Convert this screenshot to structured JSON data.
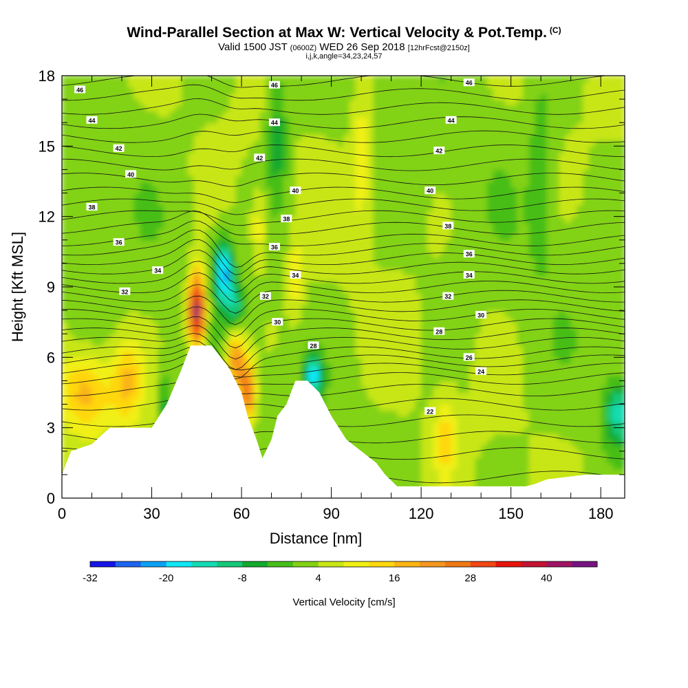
{
  "title": {
    "main": "Wind-Parallel Section at Max W: Vertical Velocity & Pot.Temp.",
    "copyright": "(C)",
    "valid_prefix": "Valid 1500 JST",
    "valid_utc": "(0600Z)",
    "valid_date": "WED 26 Sep 2018",
    "forecast": "[12hrFcst@2150z]",
    "indices": "i,j,k,angle=34,23,24,57"
  },
  "chart_data": {
    "type": "heatmap",
    "title": "Wind-Parallel Section at Max W: Vertical Velocity & Pot.Temp.",
    "xlabel": "Distance [nm]",
    "ylabel": "Height [Kft MSL]",
    "xlim": [
      0,
      188
    ],
    "ylim": [
      0,
      18
    ],
    "x_ticks": [
      0,
      30,
      60,
      90,
      120,
      150,
      180
    ],
    "y_ticks": [
      0,
      3,
      6,
      9,
      12,
      15,
      18
    ],
    "colorbar": {
      "label": "Vertical Velocity [cm/s]",
      "tick_labels": [
        "-32",
        "-20",
        "-8",
        "4",
        "16",
        "28",
        "40"
      ],
      "levels": [
        -32,
        -28,
        -24,
        -20,
        -16,
        -12,
        -8,
        -4,
        0,
        4,
        8,
        12,
        16,
        20,
        24,
        28,
        32,
        36,
        40,
        44,
        48
      ],
      "colors": [
        "#1414e6",
        "#1e64f0",
        "#0aa0f5",
        "#10e6f5",
        "#14dcb4",
        "#14c878",
        "#14aa2e",
        "#46be18",
        "#82d214",
        "#c8e614",
        "#f0f014",
        "#ffd70f",
        "#fab414",
        "#f5961e",
        "#f07814",
        "#f04614",
        "#e6140a",
        "#c31432",
        "#a01464",
        "#781482"
      ]
    },
    "terrain_kft": [
      [
        0,
        1.0
      ],
      [
        3,
        2.0
      ],
      [
        10,
        2.3
      ],
      [
        16,
        3.0
      ],
      [
        30,
        3.0
      ],
      [
        35,
        4.0
      ],
      [
        40,
        5.5
      ],
      [
        43,
        6.5
      ],
      [
        50,
        6.5
      ],
      [
        56,
        5.5
      ],
      [
        60,
        4.5
      ],
      [
        62,
        3.5
      ],
      [
        65,
        2.5
      ],
      [
        67,
        1.7
      ],
      [
        70,
        2.5
      ],
      [
        72,
        3.5
      ],
      [
        75,
        4.0
      ],
      [
        78,
        5.0
      ],
      [
        82,
        5.0
      ],
      [
        86,
        4.5
      ],
      [
        90,
        3.5
      ],
      [
        95,
        2.5
      ],
      [
        100,
        2.0
      ],
      [
        105,
        1.5
      ],
      [
        108,
        1.0
      ],
      [
        112,
        0.5
      ],
      [
        130,
        0.5
      ],
      [
        145,
        0.5
      ],
      [
        155,
        0.5
      ],
      [
        158,
        0.6
      ],
      [
        162,
        0.8
      ],
      [
        175,
        1.0
      ],
      [
        188,
        1.0
      ]
    ],
    "features": [
      {
        "name": "updraft maximum",
        "x": 45,
        "y": 8.0,
        "w_cm_s": 40
      },
      {
        "name": "downdraft minimum",
        "x": 55,
        "y": 9.5,
        "w_cm_s": -20
      },
      {
        "name": "lee downdraft",
        "x": 84,
        "y": 5.0,
        "w_cm_s": -16
      },
      {
        "name": "low-level updraft",
        "x": 8,
        "y": 4.5,
        "w_cm_s": 16
      },
      {
        "name": "low-level downdraft",
        "x": 186,
        "y": 3.5,
        "w_cm_s": -12
      },
      {
        "name": "updraft column",
        "x": 128,
        "y": 2.5,
        "w_cm_s": 12
      }
    ],
    "pot_temp_labels": [
      {
        "text": "46",
        "x": 6,
        "y": 17.4
      },
      {
        "text": "46",
        "x": 71,
        "y": 17.6
      },
      {
        "text": "46",
        "x": 136,
        "y": 17.7
      },
      {
        "text": "44",
        "x": 10,
        "y": 16.1
      },
      {
        "text": "44",
        "x": 71,
        "y": 16.0
      },
      {
        "text": "44",
        "x": 130,
        "y": 16.1
      },
      {
        "text": "42",
        "x": 19,
        "y": 14.9
      },
      {
        "text": "42",
        "x": 66,
        "y": 14.5
      },
      {
        "text": "42",
        "x": 126,
        "y": 14.8
      },
      {
        "text": "40",
        "x": 23,
        "y": 13.8
      },
      {
        "text": "40",
        "x": 78,
        "y": 13.1
      },
      {
        "text": "40",
        "x": 123,
        "y": 13.1
      },
      {
        "text": "38",
        "x": 10,
        "y": 12.4
      },
      {
        "text": "38",
        "x": 75,
        "y": 11.9
      },
      {
        "text": "38",
        "x": 129,
        "y": 11.6
      },
      {
        "text": "36",
        "x": 19,
        "y": 10.9
      },
      {
        "text": "36",
        "x": 71,
        "y": 10.7
      },
      {
        "text": "36",
        "x": 136,
        "y": 10.4
      },
      {
        "text": "34",
        "x": 32,
        "y": 9.7
      },
      {
        "text": "34",
        "x": 78,
        "y": 9.5
      },
      {
        "text": "34",
        "x": 136,
        "y": 9.5
      },
      {
        "text": "32",
        "x": 21,
        "y": 8.8
      },
      {
        "text": "32",
        "x": 68,
        "y": 8.6
      },
      {
        "text": "32",
        "x": 129,
        "y": 8.6
      },
      {
        "text": "30",
        "x": 72,
        "y": 7.5
      },
      {
        "text": "30",
        "x": 140,
        "y": 7.8
      },
      {
        "text": "28",
        "x": 84,
        "y": 6.5
      },
      {
        "text": "28",
        "x": 126,
        "y": 7.1
      },
      {
        "text": "26",
        "x": 136,
        "y": 6.0
      },
      {
        "text": "24",
        "x": 140,
        "y": 5.4
      },
      {
        "text": "22",
        "x": 123,
        "y": 3.7
      }
    ]
  }
}
